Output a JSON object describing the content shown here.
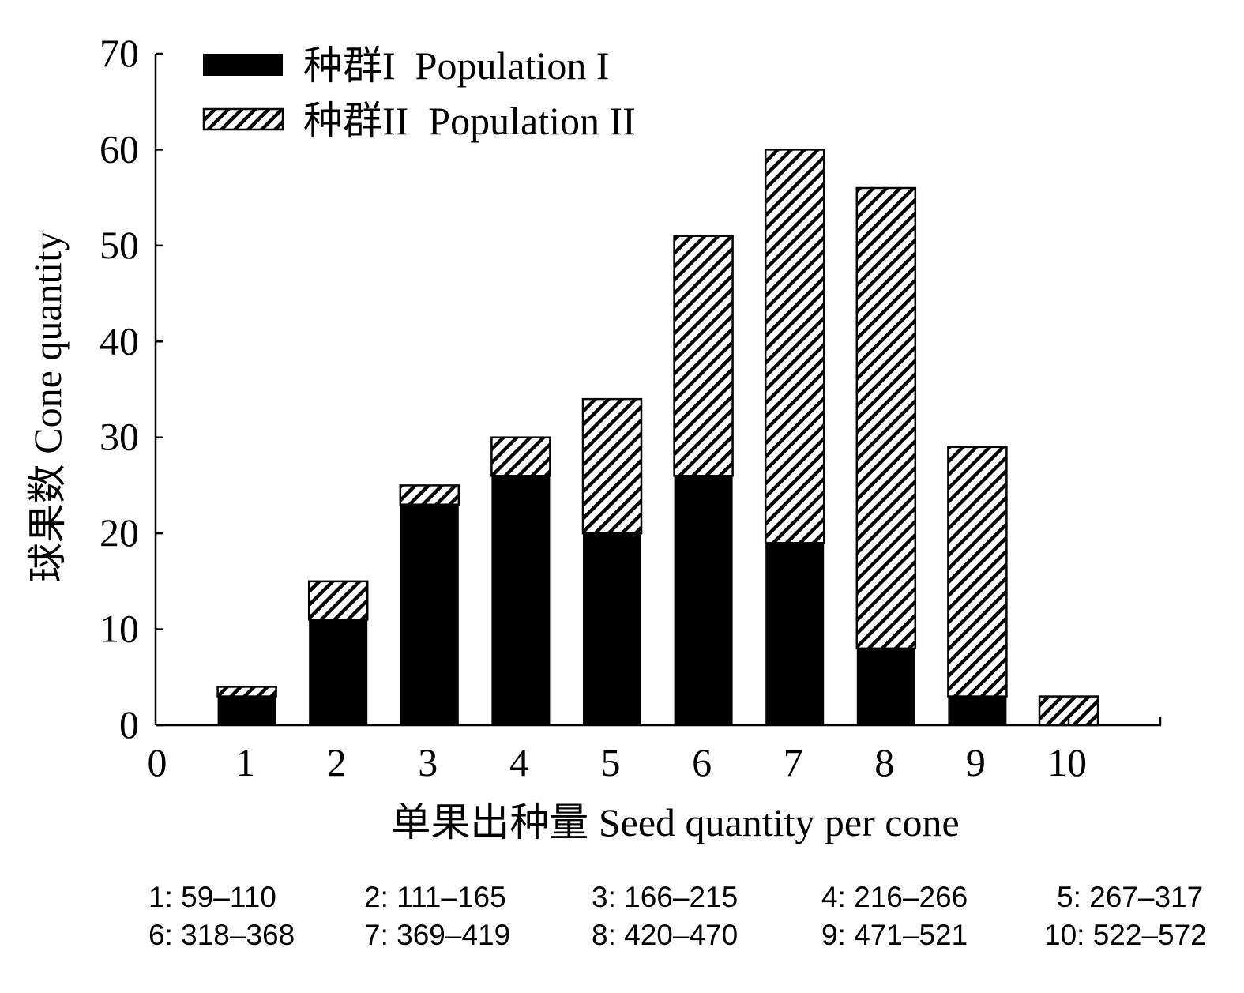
{
  "chart_data": {
    "type": "bar",
    "stacked": true,
    "x": [
      1,
      2,
      3,
      4,
      5,
      6,
      7,
      8,
      9,
      10
    ],
    "x_ticks": [
      "0",
      "1",
      "2",
      "3",
      "4",
      "5",
      "6",
      "7",
      "8",
      "9",
      "10"
    ],
    "y_ticks": [
      "0",
      "10",
      "20",
      "30",
      "40",
      "50",
      "60",
      "70"
    ],
    "ylim": [
      0,
      70
    ],
    "xlim": [
      0,
      11
    ],
    "xlabel": "单果出种量 Seed quantity per cone",
    "ylabel": "球果数 Cone quantity",
    "legend_position": "top-left",
    "grid": false,
    "series": [
      {
        "name": "种群I  Population I",
        "fill": "solid",
        "color": "#000000",
        "values": [
          3,
          11,
          23,
          26,
          20,
          26,
          19,
          8,
          3,
          0
        ]
      },
      {
        "name": "种群II  Population II",
        "fill": "hatched",
        "color": "#000000",
        "values": [
          1,
          4,
          2,
          4,
          14,
          25,
          41,
          48,
          26,
          3
        ]
      }
    ],
    "footnote": [
      "1: 59–110",
      "2: 111–165",
      "3: 166–215",
      "4: 216–266",
      "5: 267–317",
      "6: 318–368",
      "7: 369–419",
      "8: 420–470",
      "9: 471–521",
      "10: 522–572"
    ]
  }
}
